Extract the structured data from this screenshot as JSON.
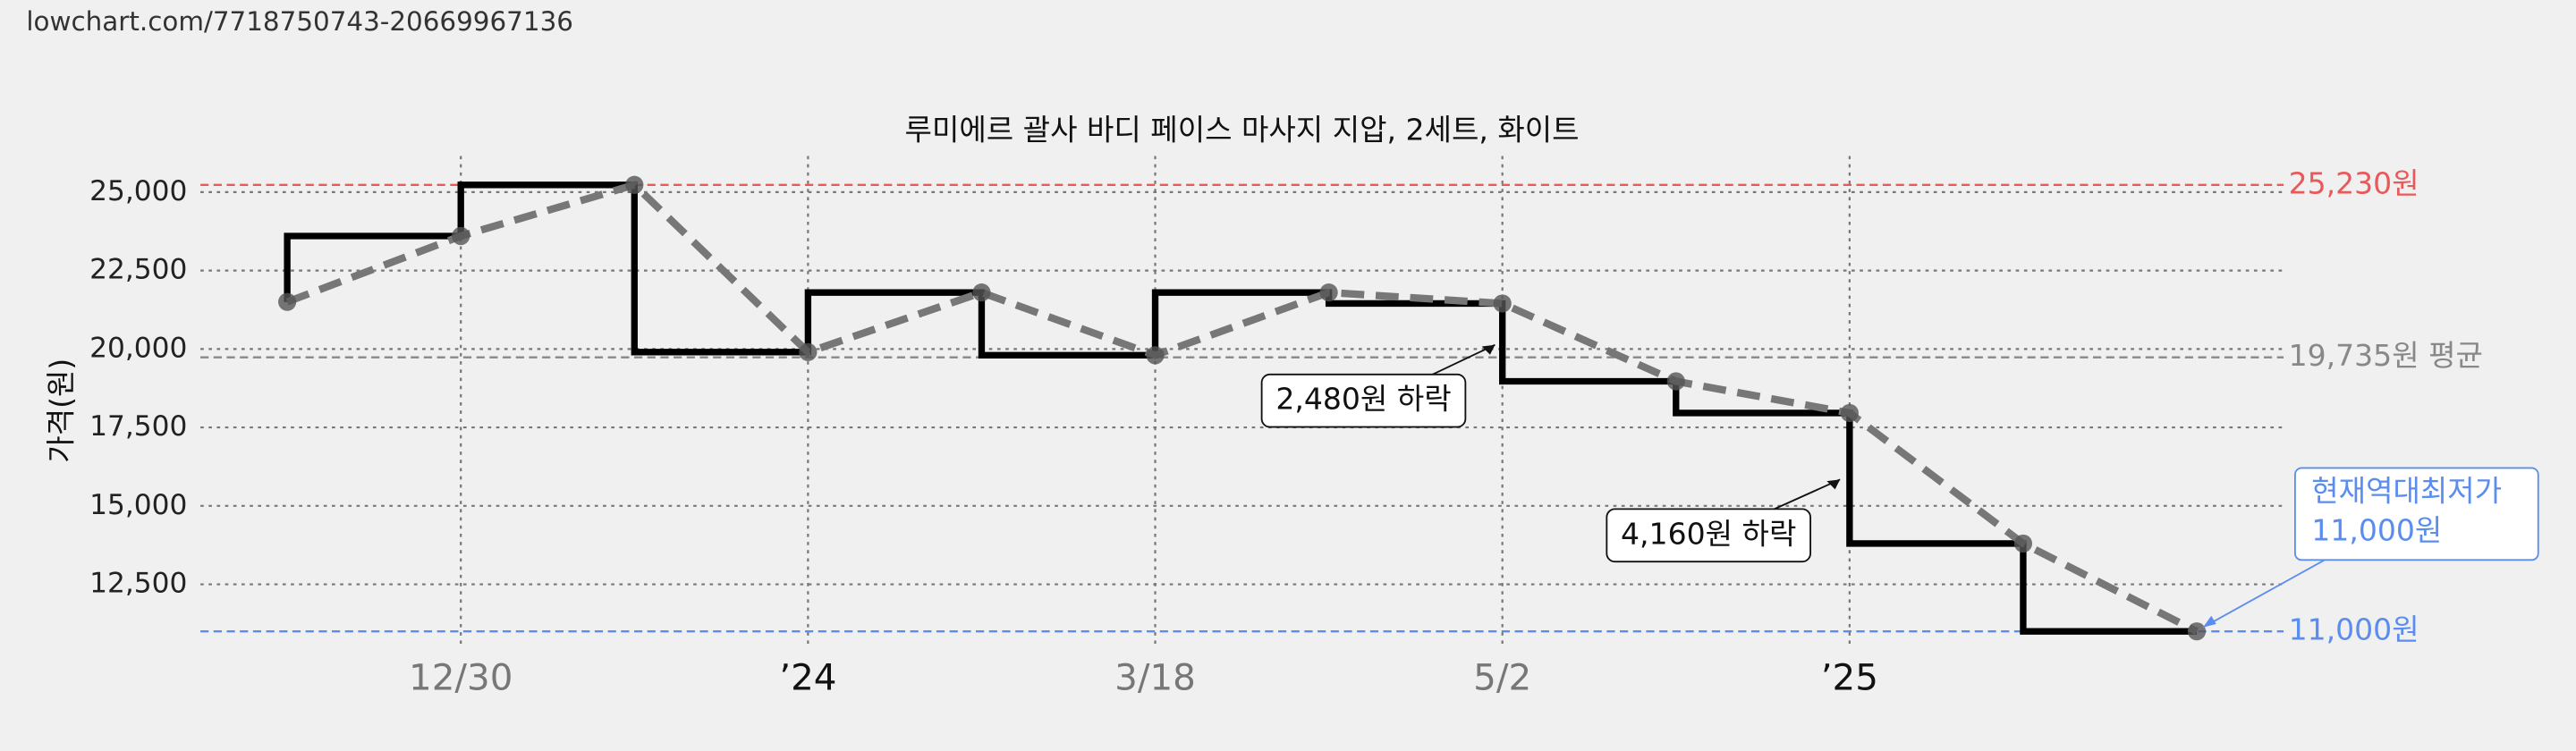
{
  "source": "lowchart.com/7718750743-20669967136",
  "chart_data": {
    "type": "line",
    "title": "루미에르 괄사 바디 페이스 마사지 지압, 2세트, 화이트",
    "y_label": "가격(원)",
    "categories": [
      null,
      "12/30",
      null,
      "’24",
      null,
      "3/18",
      null,
      "5/2",
      null,
      "’25",
      null,
      null
    ],
    "values": [
      21500,
      23600,
      25230,
      19900,
      21800,
      19800,
      21800,
      21450,
      18970,
      17960,
      13800,
      11000
    ],
    "color": "#777777",
    "step_color": "#000000",
    "ylim": [
      10450,
      26150
    ],
    "yticks": [
      {
        "value": 12500,
        "label": "12,500"
      },
      {
        "value": 15000,
        "label": "15,000"
      },
      {
        "value": 17500,
        "label": "17,500"
      },
      {
        "value": 20000,
        "label": "20,000"
      },
      {
        "value": 22500,
        "label": "22,500"
      },
      {
        "value": 25000,
        "label": "25,000"
      }
    ],
    "grid": true,
    "reference_lines": [
      {
        "value": 25230,
        "label": "25,230원",
        "color": "#e85a5a"
      },
      {
        "value": 19735,
        "label": "19,735원 평균",
        "color": "#888888"
      },
      {
        "value": 11000,
        "label": "11,000원",
        "color": "#5b8def"
      }
    ],
    "annotations": [
      "2,480원 하락",
      "4,160원 하락"
    ],
    "callout": [
      "현재역대최저가",
      "11,000원"
    ]
  }
}
